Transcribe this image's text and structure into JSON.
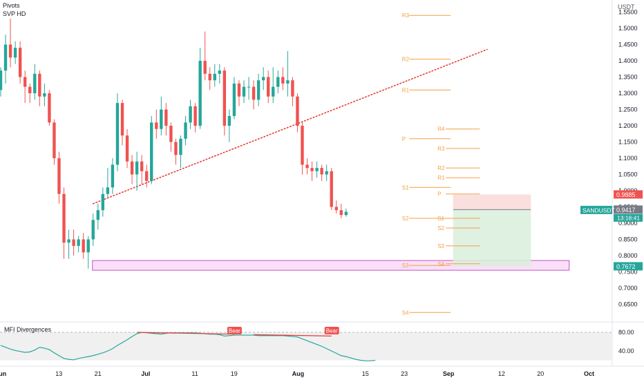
{
  "chart_data": {
    "type": "candlestick",
    "symbol": "SANDUSDT",
    "currency": "USDT",
    "overlays": [
      "Pivots",
      "SVP HD"
    ],
    "y_ticks": [
      "1.5500",
      "1.5000",
      "1.4500",
      "1.4000",
      "1.3500",
      "1.3000",
      "1.2500",
      "1.2000",
      "1.1500",
      "1.1000",
      "1.0500",
      "1.0000",
      "0.9500",
      "0.9000",
      "0.8500",
      "0.8000",
      "0.7500",
      "0.7000",
      "0.6500"
    ],
    "x_ticks": [
      {
        "label": "Jun",
        "day": 0
      },
      {
        "label": "13",
        "day": 12
      },
      {
        "label": "21",
        "day": 20
      },
      {
        "label": "Jul",
        "day": 30
      },
      {
        "label": "11",
        "day": 40
      },
      {
        "label": "19",
        "day": 48
      },
      {
        "label": "Aug",
        "day": 61
      },
      {
        "label": "15",
        "day": 75
      },
      {
        "label": "23",
        "day": 83
      },
      {
        "label": "Sep",
        "day": 92
      },
      {
        "label": "12",
        "day": 103
      },
      {
        "label": "20",
        "day": 111
      },
      {
        "label": "Oct",
        "day": 121
      }
    ],
    "candles": [
      [
        1.31,
        1.37,
        1.29,
        1.38
      ],
      [
        1.37,
        1.45,
        1.33,
        1.48
      ],
      [
        1.45,
        1.41,
        1.38,
        1.53
      ],
      [
        1.41,
        1.44,
        1.39,
        1.46
      ],
      [
        1.44,
        1.35,
        1.33,
        1.46
      ],
      [
        1.35,
        1.32,
        1.27,
        1.37
      ],
      [
        1.32,
        1.3,
        1.27,
        1.33
      ],
      [
        1.3,
        1.36,
        1.28,
        1.39
      ],
      [
        1.36,
        1.29,
        1.26,
        1.37
      ],
      [
        1.29,
        1.3,
        1.26,
        1.33
      ],
      [
        1.3,
        1.21,
        1.2,
        1.31
      ],
      [
        1.21,
        1.1,
        1.08,
        1.22
      ],
      [
        1.1,
        0.99,
        0.96,
        1.12
      ],
      [
        0.99,
        0.84,
        0.79,
        1.01
      ],
      [
        0.84,
        0.85,
        0.79,
        0.88
      ],
      [
        0.85,
        0.83,
        0.8,
        0.88
      ],
      [
        0.83,
        0.85,
        0.81,
        0.86
      ],
      [
        0.85,
        0.81,
        0.79,
        0.87
      ],
      [
        0.81,
        0.85,
        0.76,
        0.86
      ],
      [
        0.85,
        0.91,
        0.83,
        0.93
      ],
      [
        0.91,
        0.94,
        0.88,
        0.96
      ],
      [
        0.94,
        0.99,
        0.92,
        1.01
      ],
      [
        0.99,
        1.01,
        0.98,
        1.07
      ],
      [
        1.01,
        1.08,
        0.99,
        1.1
      ],
      [
        1.08,
        1.27,
        1.06,
        1.3
      ],
      [
        1.27,
        1.17,
        1.14,
        1.28
      ],
      [
        1.17,
        1.09,
        1.07,
        1.19
      ],
      [
        1.09,
        1.05,
        1.02,
        1.11
      ],
      [
        1.05,
        1.09,
        1.0,
        1.12
      ],
      [
        1.09,
        1.06,
        1.02,
        1.11
      ],
      [
        1.06,
        1.03,
        1.01,
        1.08
      ],
      [
        1.03,
        1.21,
        1.02,
        1.23
      ],
      [
        1.21,
        1.19,
        1.16,
        1.25
      ],
      [
        1.19,
        1.25,
        1.17,
        1.29
      ],
      [
        1.25,
        1.2,
        1.17,
        1.27
      ],
      [
        1.2,
        1.15,
        1.12,
        1.21
      ],
      [
        1.15,
        1.11,
        1.08,
        1.16
      ],
      [
        1.11,
        1.16,
        1.07,
        1.17
      ],
      [
        1.16,
        1.21,
        1.14,
        1.23
      ],
      [
        1.21,
        1.26,
        1.19,
        1.28
      ],
      [
        1.26,
        1.2,
        1.18,
        1.27
      ],
      [
        1.2,
        1.4,
        1.19,
        1.44
      ],
      [
        1.4,
        1.36,
        1.34,
        1.49
      ],
      [
        1.36,
        1.34,
        1.31,
        1.38
      ],
      [
        1.34,
        1.36,
        1.32,
        1.39
      ],
      [
        1.36,
        1.37,
        1.33,
        1.39
      ],
      [
        1.37,
        1.2,
        1.17,
        1.38
      ],
      [
        1.2,
        1.23,
        1.15,
        1.25
      ],
      [
        1.23,
        1.33,
        1.22,
        1.35
      ],
      [
        1.33,
        1.29,
        1.26,
        1.34
      ],
      [
        1.29,
        1.32,
        1.27,
        1.34
      ],
      [
        1.32,
        1.32,
        1.28,
        1.35
      ],
      [
        1.32,
        1.28,
        1.25,
        1.34
      ],
      [
        1.28,
        1.34,
        1.26,
        1.36
      ],
      [
        1.34,
        1.35,
        1.31,
        1.38
      ],
      [
        1.35,
        1.29,
        1.27,
        1.37
      ],
      [
        1.29,
        1.32,
        1.27,
        1.38
      ],
      [
        1.32,
        1.35,
        1.3,
        1.37
      ],
      [
        1.35,
        1.33,
        1.31,
        1.38
      ],
      [
        1.33,
        1.34,
        1.29,
        1.43
      ],
      [
        1.34,
        1.29,
        1.26,
        1.35
      ],
      [
        1.29,
        1.2,
        1.18,
        1.3
      ],
      [
        1.2,
        1.08,
        1.05,
        1.21
      ],
      [
        1.08,
        1.07,
        1.05,
        1.1
      ],
      [
        1.07,
        1.06,
        1.03,
        1.09
      ],
      [
        1.06,
        1.07,
        1.04,
        1.09
      ],
      [
        1.07,
        1.05,
        1.03,
        1.08
      ],
      [
        1.05,
        1.06,
        1.03,
        1.08
      ],
      [
        1.06,
        0.95,
        0.94,
        1.07
      ],
      [
        0.95,
        0.94,
        0.93,
        0.97
      ],
      [
        0.94,
        0.925,
        0.915,
        0.96
      ],
      [
        0.925,
        0.935,
        0.92,
        0.945
      ]
    ],
    "trendline": {
      "from": {
        "day": 19,
        "price": 0.96
      },
      "to": {
        "day": 100,
        "price": 1.435
      }
    },
    "pivots_monthly": [
      {
        "label": "R3",
        "price": 1.54
      },
      {
        "label": "R2",
        "price": 1.405
      },
      {
        "label": "R1",
        "price": 1.31
      },
      {
        "label": "P",
        "price": 1.16
      },
      {
        "label": "S1",
        "price": 1.01
      },
      {
        "label": "S2",
        "price": 0.915
      },
      {
        "label": "S3",
        "price": 0.77
      },
      {
        "label": "S4",
        "price": 0.625
      }
    ],
    "pivots_weekly": [
      {
        "label": "R4",
        "price": 1.19
      },
      {
        "label": "R3",
        "price": 1.13
      },
      {
        "label": "R2",
        "price": 1.07
      },
      {
        "label": "R1",
        "price": 1.04
      },
      {
        "label": "P",
        "price": 0.99
      },
      {
        "label": "S1",
        "price": 0.915
      },
      {
        "label": "S2",
        "price": 0.885
      },
      {
        "label": "S3",
        "price": 0.83
      },
      {
        "label": "S4",
        "price": 0.775
      }
    ],
    "support_zone": {
      "low": 0.755,
      "high": 0.785
    },
    "position": {
      "stop": 0.9885,
      "entry": 0.9417,
      "target": 0.7672
    },
    "price_labels": {
      "stop": "0.9885",
      "entry": "0.9417",
      "target": "0.7672",
      "symbol": "SANDUSDT",
      "countdown": "13:18:41"
    },
    "colors": {
      "up": "#26a69a",
      "down": "#ef5350",
      "trendline": "#e53935",
      "pivot": "#f59e42",
      "zone_fill": "#f3c6f3",
      "zone_border": "#c850c0",
      "mfi": "#26a69a",
      "divergence": "#e53935"
    },
    "mfi": {
      "title": "MFI Divergences",
      "y_ticks": [
        "80.00",
        "40.00"
      ],
      "values": [
        52,
        48,
        44,
        41,
        39,
        37,
        38,
        42,
        48,
        46,
        43,
        36,
        30,
        24,
        22,
        21,
        24,
        26,
        28,
        30,
        33,
        36,
        40,
        45,
        52,
        58,
        64,
        71,
        77,
        80,
        79,
        78,
        77,
        76,
        78,
        79,
        79,
        79,
        79,
        79,
        79,
        78,
        77,
        76,
        76,
        75,
        72,
        73,
        74,
        74,
        74,
        74,
        74,
        73,
        73,
        73,
        73,
        73,
        73,
        72,
        71,
        70,
        66,
        62,
        58,
        54,
        50,
        45,
        40,
        35,
        30,
        28,
        25,
        22,
        20,
        19,
        19,
        20
      ],
      "bear_labels": [
        {
          "label": "Bear",
          "day": 48
        },
        {
          "label": "Bear",
          "day": 68
        }
      ],
      "divergences": [
        {
          "from_day": 28,
          "from": 80,
          "to_day": 48,
          "to": 76
        },
        {
          "from_day": 52,
          "from": 75,
          "to_day": 68,
          "to": 72
        }
      ]
    }
  }
}
